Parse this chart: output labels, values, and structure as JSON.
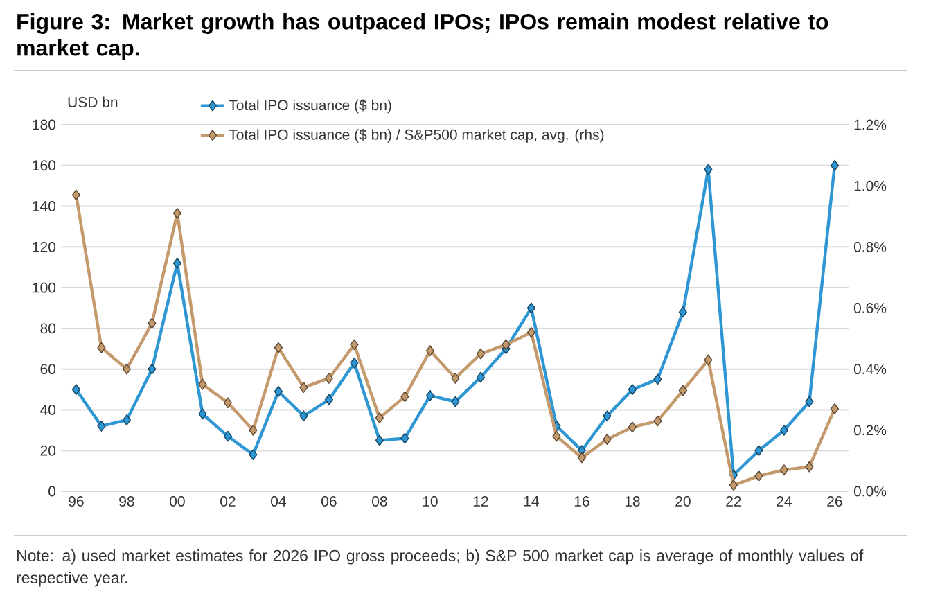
{
  "chart_data": {
    "type": "line",
    "title": "Figure 3: Market growth has outpaced IPOs; IPOs remain modest relative to market cap.",
    "ylabel": "USD bn",
    "x": [
      1996,
      1997,
      1998,
      1999,
      2000,
      2001,
      2002,
      2003,
      2004,
      2005,
      2006,
      2007,
      2008,
      2009,
      2010,
      2011,
      2012,
      2013,
      2014,
      2015,
      2016,
      2017,
      2018,
      2019,
      2020,
      2021,
      2022,
      2023,
      2024,
      2025,
      2026
    ],
    "series": [
      {
        "name": "Total IPO issuance ($ bn)",
        "color": "#2f96d4",
        "values": [
          50,
          32,
          35,
          60,
          112,
          38,
          27,
          18,
          49,
          37,
          45,
          63,
          25,
          26,
          47,
          44,
          56,
          70,
          90,
          32,
          20,
          37,
          50,
          55,
          88,
          158,
          8,
          20,
          30,
          44,
          160
        ]
      },
      {
        "name": "Total IPO issuance ($ bn) / S&P500 market cap, avg. (rhs)",
        "color": "#c49a6c",
        "axis": "y2",
        "values": [
          0.97,
          0.47,
          0.4,
          0.55,
          0.91,
          0.35,
          0.29,
          0.2,
          0.47,
          0.34,
          0.37,
          0.48,
          0.24,
          0.31,
          0.46,
          0.37,
          0.45,
          0.48,
          0.52,
          0.18,
          0.11,
          0.17,
          0.21,
          0.23,
          0.33,
          0.43,
          0.02,
          0.05,
          0.07,
          0.08,
          0.27
        ]
      }
    ],
    "xlim": [
      1995.4,
      2026.55
    ],
    "xticks": [
      {
        "value": 1996,
        "label": "96"
      },
      {
        "value": 1998,
        "label": "98"
      },
      {
        "value": 2000,
        "label": "00"
      },
      {
        "value": 2002,
        "label": "02"
      },
      {
        "value": 2004,
        "label": "04"
      },
      {
        "value": 2006,
        "label": "06"
      },
      {
        "value": 2008,
        "label": "08"
      },
      {
        "value": 2010,
        "label": "10"
      },
      {
        "value": 2012,
        "label": "12"
      },
      {
        "value": 2014,
        "label": "14"
      },
      {
        "value": 2016,
        "label": "16"
      },
      {
        "value": 2018,
        "label": "18"
      },
      {
        "value": 2020,
        "label": "20"
      },
      {
        "value": 2022,
        "label": "22"
      },
      {
        "value": 2024,
        "label": "24"
      },
      {
        "value": 2026,
        "label": "26"
      }
    ],
    "ylim": [
      0,
      180
    ],
    "yticks": [
      0,
      20,
      40,
      60,
      80,
      100,
      120,
      140,
      160,
      180
    ],
    "y2lim": [
      0,
      1.2
    ],
    "y2ticks": [
      {
        "value": 0,
        "label": "0.0%"
      },
      {
        "value": 0.2,
        "label": "0.2%"
      },
      {
        "value": 0.4,
        "label": "0.4%"
      },
      {
        "value": 0.6,
        "label": "0.6%"
      },
      {
        "value": 0.8,
        "label": "0.8%"
      },
      {
        "value": 1.0,
        "label": "1.0%"
      },
      {
        "value": 1.2,
        "label": "1.2%"
      }
    ],
    "grid": "y",
    "legend": "top",
    "marker": "diamond",
    "line_style": "solid",
    "annotations": [
      "Note: a) used market estimates for 2026 IPO gross proceeds; b) S&P 500 market cap is average of monthly values of respective year."
    ]
  }
}
